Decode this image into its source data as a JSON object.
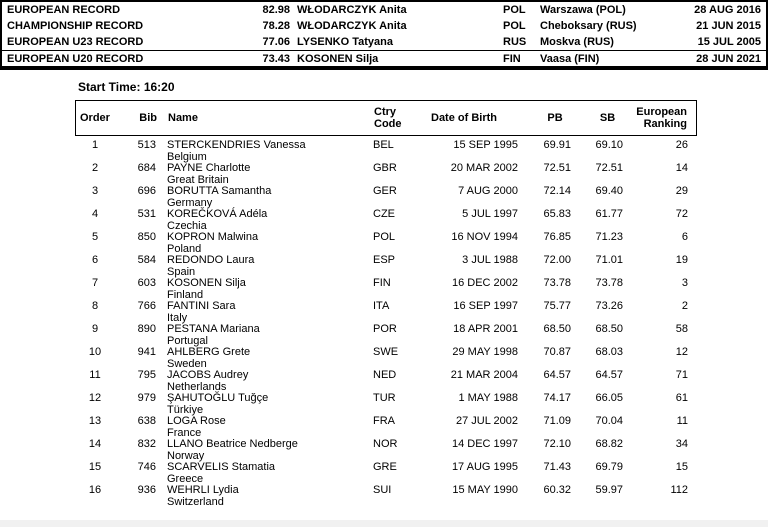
{
  "colors": {
    "text": "#000000",
    "border": "#000000",
    "bottom_strip": "#f1f1f1"
  },
  "records": {
    "rows": [
      {
        "label": "EUROPEAN RECORD",
        "mark": "82.98",
        "holder": "WŁODARCZYK Anita",
        "nat": "POL",
        "venue": "Warszawa (POL)",
        "date": "28 AUG 2016"
      },
      {
        "label": "CHAMPIONSHIP RECORD",
        "mark": "78.28",
        "holder": "WŁODARCZYK Anita",
        "nat": "POL",
        "venue": "Cheboksary (RUS)",
        "date": "21 JUN 2015"
      },
      {
        "label": "EUROPEAN U23 RECORD",
        "mark": "77.06",
        "holder": "LYSENKO Tatyana",
        "nat": "RUS",
        "venue": "Moskva (RUS)",
        "date": "15 JUL 2005"
      },
      {
        "label": "EUROPEAN U20 RECORD",
        "mark": "73.43",
        "holder": "KOSONEN Silja",
        "nat": "FIN",
        "venue": "Vaasa (FIN)",
        "date": "28 JUN 2021"
      }
    ]
  },
  "start_list": {
    "start_time_label": "Start Time:",
    "start_time_value": "16:20",
    "headers": {
      "order": "Order",
      "bib": "Bib",
      "name": "Name",
      "ctry_line1": "Ctry",
      "ctry_line2": "Code",
      "dob": "Date of Birth",
      "pb": "PB",
      "sb": "SB",
      "ranking_line1": "European",
      "ranking_line2": "Ranking"
    },
    "athletes": [
      {
        "order": "1",
        "bib": "513",
        "name": "STERCKENDRIES Vanessa",
        "country": "Belgium",
        "ctry": "BEL",
        "dob": "15 SEP 1995",
        "pb": "69.91",
        "sb": "69.10",
        "rank": "26"
      },
      {
        "order": "2",
        "bib": "684",
        "name": "PAYNE Charlotte",
        "country": "Great Britain",
        "ctry": "GBR",
        "dob": "20 MAR 2002",
        "pb": "72.51",
        "sb": "72.51",
        "rank": "14"
      },
      {
        "order": "3",
        "bib": "696",
        "name": "BORUTTA Samantha",
        "country": "Germany",
        "ctry": "GER",
        "dob": "7 AUG 2000",
        "pb": "72.14",
        "sb": "69.40",
        "rank": "29"
      },
      {
        "order": "4",
        "bib": "531",
        "name": "KOREČKOVÁ Adéla",
        "country": "Czechia",
        "ctry": "CZE",
        "dob": "5 JUL 1997",
        "pb": "65.83",
        "sb": "61.77",
        "rank": "72"
      },
      {
        "order": "5",
        "bib": "850",
        "name": "KOPRON Malwina",
        "country": "Poland",
        "ctry": "POL",
        "dob": "16 NOV 1994",
        "pb": "76.85",
        "sb": "71.23",
        "rank": "6"
      },
      {
        "order": "6",
        "bib": "584",
        "name": "REDONDO Laura",
        "country": "Spain",
        "ctry": "ESP",
        "dob": "3 JUL 1988",
        "pb": "72.00",
        "sb": "71.01",
        "rank": "19"
      },
      {
        "order": "7",
        "bib": "603",
        "name": "KOSONEN Silja",
        "country": "Finland",
        "ctry": "FIN",
        "dob": "16 DEC 2002",
        "pb": "73.78",
        "sb": "73.78",
        "rank": "3"
      },
      {
        "order": "8",
        "bib": "766",
        "name": "FANTINI Sara",
        "country": "Italy",
        "ctry": "ITA",
        "dob": "16 SEP 1997",
        "pb": "75.77",
        "sb": "73.26",
        "rank": "2"
      },
      {
        "order": "9",
        "bib": "890",
        "name": "PESTANA Mariana",
        "country": "Portugal",
        "ctry": "POR",
        "dob": "18 APR 2001",
        "pb": "68.50",
        "sb": "68.50",
        "rank": "58"
      },
      {
        "order": "10",
        "bib": "941",
        "name": "AHLBERG Grete",
        "country": "Sweden",
        "ctry": "SWE",
        "dob": "29 MAY 1998",
        "pb": "70.87",
        "sb": "68.03",
        "rank": "12"
      },
      {
        "order": "11",
        "bib": "795",
        "name": "JACOBS Audrey",
        "country": "Netherlands",
        "ctry": "NED",
        "dob": "21 MAR 2004",
        "pb": "64.57",
        "sb": "64.57",
        "rank": "71"
      },
      {
        "order": "12",
        "bib": "979",
        "name": "ŞAHUTOĞLU Tuğçe",
        "country": "Türkiye",
        "ctry": "TUR",
        "dob": "1 MAY 1988",
        "pb": "74.17",
        "sb": "66.05",
        "rank": "61"
      },
      {
        "order": "13",
        "bib": "638",
        "name": "LOGA Rose",
        "country": "France",
        "ctry": "FRA",
        "dob": "27 JUL 2002",
        "pb": "71.09",
        "sb": "70.04",
        "rank": "11"
      },
      {
        "order": "14",
        "bib": "832",
        "name": "LLANO Beatrice Nedberge",
        "country": "Norway",
        "ctry": "NOR",
        "dob": "14 DEC 1997",
        "pb": "72.10",
        "sb": "68.82",
        "rank": "34"
      },
      {
        "order": "15",
        "bib": "746",
        "name": "SCARVELIS Stamatia",
        "country": "Greece",
        "ctry": "GRE",
        "dob": "17 AUG 1995",
        "pb": "71.43",
        "sb": "69.79",
        "rank": "15"
      },
      {
        "order": "16",
        "bib": "936",
        "name": "WEHRLI Lydia",
        "country": "Switzerland",
        "ctry": "SUI",
        "dob": "15 MAY 1990",
        "pb": "60.32",
        "sb": "59.97",
        "rank": "112"
      }
    ]
  }
}
